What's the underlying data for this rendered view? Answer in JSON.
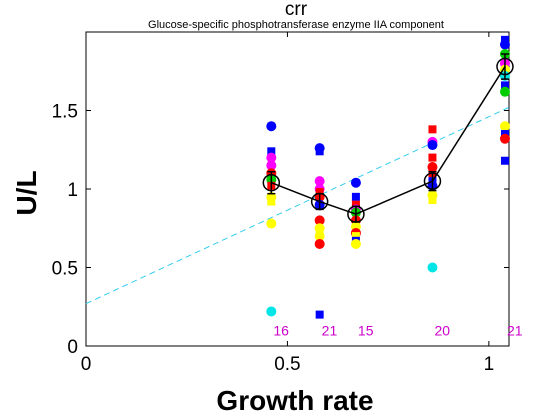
{
  "chart_data": {
    "type": "scatter",
    "title": "crr",
    "subtitle": "Glucose-specific phosphotransferase enzyme IIA component",
    "xlabel": "Growth rate",
    "ylabel": "U/L",
    "xlim": [
      0,
      1.05
    ],
    "ylim": [
      0,
      2.0
    ],
    "xticks": [
      0,
      0.5,
      1
    ],
    "xtick_labels": [
      "0",
      "0.5",
      "1"
    ],
    "yticks": [
      0,
      0.5,
      1,
      1.5
    ],
    "ytick_labels": [
      "0",
      "0.5",
      "1",
      "1.5"
    ],
    "grid": false,
    "fit_line": {
      "color": "#33ccee",
      "x": [
        0,
        1.05
      ],
      "y": [
        0.27,
        1.52
      ]
    },
    "mean_line": {
      "color": "#000000",
      "x": [
        0.46,
        0.58,
        0.67,
        0.86,
        1.04
      ],
      "y": [
        1.04,
        0.92,
        0.84,
        1.05,
        1.78
      ],
      "err": [
        0.07,
        0.05,
        0.05,
        0.06,
        0.08
      ]
    },
    "points": [
      {
        "x": 0.46,
        "y": 1.4,
        "color": "#0000ff",
        "shape": "circle"
      },
      {
        "x": 0.46,
        "y": 1.24,
        "color": "#0000ff",
        "shape": "square"
      },
      {
        "x": 0.46,
        "y": 1.2,
        "color": "#ff00ff",
        "shape": "circle"
      },
      {
        "x": 0.46,
        "y": 1.15,
        "color": "#ff00ff",
        "shape": "circle"
      },
      {
        "x": 0.46,
        "y": 1.1,
        "color": "#ff0000",
        "shape": "circle"
      },
      {
        "x": 0.46,
        "y": 1.06,
        "color": "#00cc00",
        "shape": "circle"
      },
      {
        "x": 0.46,
        "y": 1.02,
        "color": "#ff0000",
        "shape": "square"
      },
      {
        "x": 0.46,
        "y": 0.95,
        "color": "#ffff00",
        "shape": "circle"
      },
      {
        "x": 0.46,
        "y": 0.92,
        "color": "#ffff00",
        "shape": "square"
      },
      {
        "x": 0.46,
        "y": 0.78,
        "color": "#ffff00",
        "shape": "circle"
      },
      {
        "x": 0.46,
        "y": 0.22,
        "color": "#00e5e5",
        "shape": "circle"
      },
      {
        "x": 0.58,
        "y": 1.26,
        "color": "#0000ff",
        "shape": "circle"
      },
      {
        "x": 0.58,
        "y": 1.24,
        "color": "#0000ff",
        "shape": "square"
      },
      {
        "x": 0.58,
        "y": 1.05,
        "color": "#ff00ff",
        "shape": "circle"
      },
      {
        "x": 0.58,
        "y": 1.0,
        "color": "#ff00ff",
        "shape": "circle"
      },
      {
        "x": 0.58,
        "y": 0.98,
        "color": "#ff0000",
        "shape": "square"
      },
      {
        "x": 0.58,
        "y": 0.95,
        "color": "#ff0000",
        "shape": "circle"
      },
      {
        "x": 0.58,
        "y": 0.9,
        "color": "#0000ff",
        "shape": "circle"
      },
      {
        "x": 0.58,
        "y": 0.8,
        "color": "#ff0000",
        "shape": "circle"
      },
      {
        "x": 0.58,
        "y": 0.75,
        "color": "#ffff00",
        "shape": "circle"
      },
      {
        "x": 0.58,
        "y": 0.72,
        "color": "#ffff00",
        "shape": "square"
      },
      {
        "x": 0.58,
        "y": 0.7,
        "color": "#ffff00",
        "shape": "circle"
      },
      {
        "x": 0.58,
        "y": 0.65,
        "color": "#ff0000",
        "shape": "circle"
      },
      {
        "x": 0.58,
        "y": 0.2,
        "color": "#0000ff",
        "shape": "square"
      },
      {
        "x": 0.67,
        "y": 1.04,
        "color": "#0000ff",
        "shape": "circle"
      },
      {
        "x": 0.67,
        "y": 0.95,
        "color": "#0000ff",
        "shape": "square"
      },
      {
        "x": 0.67,
        "y": 0.9,
        "color": "#ff0000",
        "shape": "square"
      },
      {
        "x": 0.67,
        "y": 0.87,
        "color": "#ff00ff",
        "shape": "circle"
      },
      {
        "x": 0.67,
        "y": 0.85,
        "color": "#00cc00",
        "shape": "circle"
      },
      {
        "x": 0.67,
        "y": 0.8,
        "color": "#ff0000",
        "shape": "circle"
      },
      {
        "x": 0.67,
        "y": 0.76,
        "color": "#ffff00",
        "shape": "circle"
      },
      {
        "x": 0.67,
        "y": 0.72,
        "color": "#ff0000",
        "shape": "circle"
      },
      {
        "x": 0.67,
        "y": 0.7,
        "color": "#ffff00",
        "shape": "square"
      },
      {
        "x": 0.67,
        "y": 0.67,
        "color": "#0000ff",
        "shape": "square"
      },
      {
        "x": 0.67,
        "y": 0.65,
        "color": "#ffff00",
        "shape": "circle"
      },
      {
        "x": 0.86,
        "y": 1.38,
        "color": "#ff0000",
        "shape": "square"
      },
      {
        "x": 0.86,
        "y": 1.3,
        "color": "#ff00ff",
        "shape": "circle"
      },
      {
        "x": 0.86,
        "y": 1.28,
        "color": "#0000ff",
        "shape": "circle"
      },
      {
        "x": 0.86,
        "y": 1.2,
        "color": "#ff0000",
        "shape": "square"
      },
      {
        "x": 0.86,
        "y": 1.14,
        "color": "#ff0000",
        "shape": "circle"
      },
      {
        "x": 0.86,
        "y": 1.1,
        "color": "#ff0000",
        "shape": "square"
      },
      {
        "x": 0.86,
        "y": 1.05,
        "color": "#0000ff",
        "shape": "square"
      },
      {
        "x": 0.86,
        "y": 1.02,
        "color": "#0000ff",
        "shape": "circle"
      },
      {
        "x": 0.86,
        "y": 0.96,
        "color": "#ffff00",
        "shape": "circle"
      },
      {
        "x": 0.86,
        "y": 0.93,
        "color": "#ffff00",
        "shape": "square"
      },
      {
        "x": 0.86,
        "y": 0.5,
        "color": "#00e5e5",
        "shape": "circle"
      },
      {
        "x": 1.04,
        "y": 1.95,
        "color": "#0000ff",
        "shape": "square"
      },
      {
        "x": 1.04,
        "y": 1.92,
        "color": "#0000ff",
        "shape": "circle"
      },
      {
        "x": 1.04,
        "y": 1.86,
        "color": "#00cc00",
        "shape": "circle"
      },
      {
        "x": 1.04,
        "y": 1.8,
        "color": "#ff00ff",
        "shape": "circle"
      },
      {
        "x": 1.04,
        "y": 1.76,
        "color": "#ffff00",
        "shape": "circle"
      },
      {
        "x": 1.04,
        "y": 1.72,
        "color": "#00e5e5",
        "shape": "circle"
      },
      {
        "x": 1.04,
        "y": 1.66,
        "color": "#0000ff",
        "shape": "square"
      },
      {
        "x": 1.04,
        "y": 1.62,
        "color": "#00cc00",
        "shape": "circle"
      },
      {
        "x": 1.04,
        "y": 1.4,
        "color": "#ffff00",
        "shape": "circle"
      },
      {
        "x": 1.04,
        "y": 1.35,
        "color": "#0000ff",
        "shape": "square"
      },
      {
        "x": 1.04,
        "y": 1.32,
        "color": "#ff0000",
        "shape": "circle"
      },
      {
        "x": 1.04,
        "y": 1.18,
        "color": "#0000ff",
        "shape": "square"
      }
    ],
    "counts": [
      {
        "x": 0.46,
        "label": "16"
      },
      {
        "x": 0.58,
        "label": "21"
      },
      {
        "x": 0.67,
        "label": "15"
      },
      {
        "x": 0.86,
        "label": "20"
      },
      {
        "x": 1.04,
        "label": "21"
      }
    ],
    "count_label_y": 0.1
  }
}
